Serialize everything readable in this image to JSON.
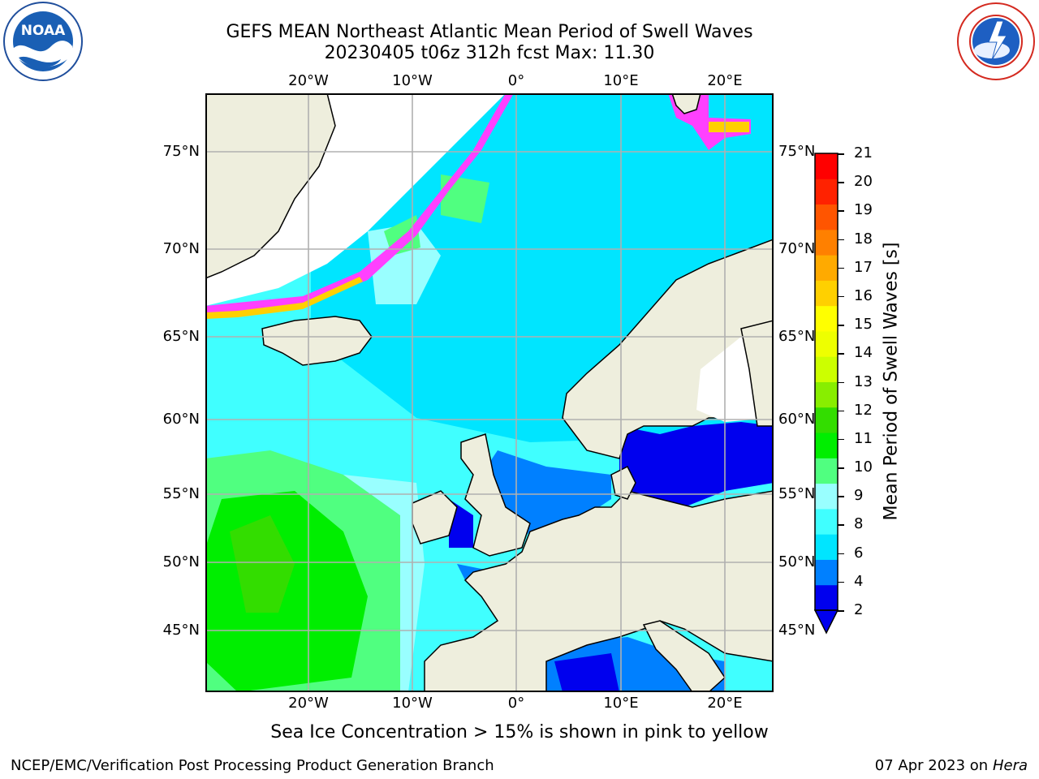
{
  "header": {
    "title_line1": "GEFS MEAN Northeast Atlantic Mean Period of Swell Waves",
    "title_line2": "20230405 t06z 312h fcst   Max: 11.30"
  },
  "logos": {
    "left": "NOAA",
    "left_ring_text": "NATIONAL OCEANIC AND ATMOSPHERIC ADMINISTRATION · U.S. DEPARTMENT OF COMMERCE",
    "right_ring_text": "NATIONAL WEATHER SERVICE"
  },
  "map": {
    "lon_labels": [
      "20°W",
      "10°W",
      "0°",
      "10°E",
      "20°E"
    ],
    "lat_labels": [
      "75°N",
      "70°N",
      "65°N",
      "60°N",
      "55°N",
      "50°N",
      "45°N"
    ],
    "colors": {
      "land": "#eeeedd",
      "ice_free": "#ffffff",
      "grid": "#b0b0b0"
    }
  },
  "colorbar": {
    "title": "Mean Period of Swell Waves [s]",
    "ticks": [
      "21",
      "20",
      "19",
      "18",
      "17",
      "16",
      "15",
      "14",
      "13",
      "12",
      "11",
      "10",
      "9",
      "8",
      "6",
      "4",
      "2"
    ],
    "colors": [
      "#0000ee",
      "#0080ff",
      "#00e5ff",
      "#40ffff",
      "#99ffff",
      "#50ff80",
      "#00ee00",
      "#33dd00",
      "#88ee00",
      "#ccff00",
      "#eeff00",
      "#ffff00",
      "#ffd000",
      "#ffaa00",
      "#ff8000",
      "#ff5500",
      "#ff2200",
      "#ff0000"
    ]
  },
  "footnote": "Sea Ice Concentration > 15% is shown in pink to yellow",
  "footer": {
    "left": "NCEP/EMC/Verification Post Processing Product Generation Branch",
    "date": "07 Apr 2023 on",
    "host": "Hera"
  }
}
